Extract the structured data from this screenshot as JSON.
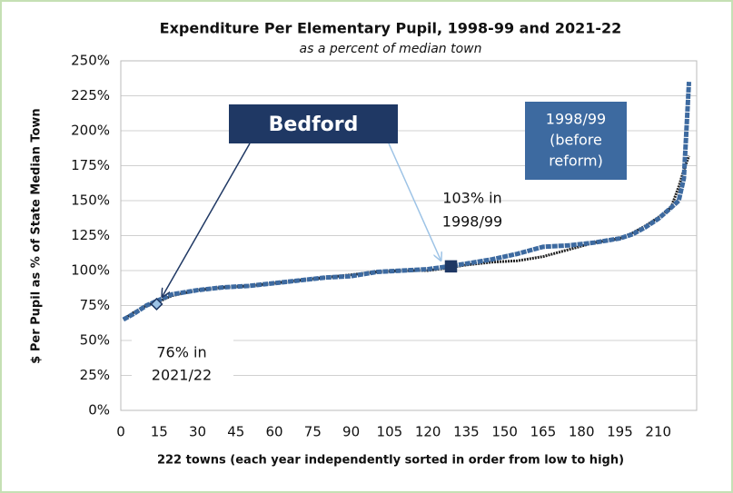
{
  "chart_data": {
    "type": "line",
    "title": "Expenditure Per Elementary Pupil, 1998-99 and 2021-22",
    "subtitle": "as a percent of median town",
    "x_label": "222 towns (each year independently sorted in order from low to high)",
    "y_label": "$ Per Pupil as % of State Median Town",
    "x": [
      1,
      5,
      10,
      15,
      20,
      30,
      40,
      50,
      60,
      70,
      80,
      90,
      100,
      110,
      120,
      128,
      135,
      145,
      155,
      165,
      175,
      185,
      195,
      200,
      205,
      210,
      215,
      218,
      220,
      222
    ],
    "series": [
      {
        "color": "#222222",
        "values": [
          65,
          70,
          75,
          78,
          82,
          86,
          88,
          89,
          91,
          93,
          95,
          97,
          99,
          100,
          100,
          102,
          104,
          106,
          107,
          110,
          115,
          120,
          123,
          127,
          132,
          138,
          145,
          160,
          172,
          182
        ]
      },
      {
        "color": "#3d6aa0",
        "values": [
          65,
          69,
          75,
          79,
          83,
          86,
          88,
          89,
          91,
          93,
          95,
          96,
          99,
          100,
          101,
          103,
          105,
          108,
          112,
          117,
          118,
          120,
          123,
          126,
          131,
          137,
          145,
          150,
          166,
          235
        ]
      }
    ],
    "markers": [
      {
        "x": 14,
        "y": 76,
        "color": "#9dc3e6",
        "shape": "diamond"
      },
      {
        "x": 129,
        "y": 103,
        "color": "#1f3864",
        "shape": "square"
      }
    ],
    "annotations": {
      "bedford": "Bedford",
      "reform": [
        "1998/99",
        "(before",
        "reform)"
      ],
      "high": [
        "103% in",
        "1998/99"
      ],
      "low": [
        "76% in",
        "2021/22"
      ]
    },
    "xlim": [
      0,
      225
    ],
    "xticks": [
      0,
      15,
      30,
      45,
      60,
      75,
      90,
      105,
      120,
      135,
      150,
      165,
      180,
      195,
      210
    ],
    "ylim": [
      0,
      250
    ],
    "yticks": [
      {
        "value": 0,
        "label": "0%"
      },
      {
        "value": 25,
        "label": "25%"
      },
      {
        "value": 50,
        "label": "50%"
      },
      {
        "value": 75,
        "label": "75%"
      },
      {
        "value": 100,
        "label": "100%"
      },
      {
        "value": 125,
        "label": "125%"
      },
      {
        "value": 150,
        "label": "150%"
      },
      {
        "value": 175,
        "label": "175%"
      },
      {
        "value": 200,
        "label": "200%"
      },
      {
        "value": 225,
        "label": "225%"
      },
      {
        "value": 250,
        "label": "250%"
      }
    ],
    "grid": true
  }
}
